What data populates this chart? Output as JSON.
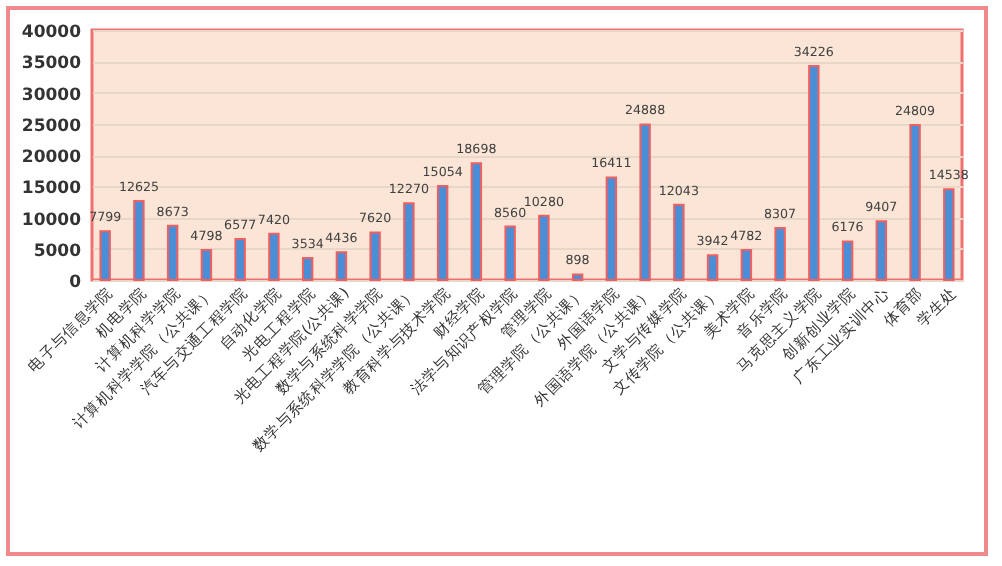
{
  "chart_data": {
    "type": "bar",
    "categories": [
      "电子与信息学院",
      "机电学院",
      "计算机科学学院",
      "计算机科学学院（公共课）",
      "汽车与交通工程学院",
      "自动化学院",
      "光电工程学院",
      "光电工程学院(公共课)",
      "数学与系统科学学院",
      "数学与系统科学学院（公共课）",
      "教育科学与技术学院",
      "财经学院",
      "法学与知识产权学院",
      "管理学院",
      "管理学院（公共课）",
      "外国语学院",
      "外国语学院（公共课）",
      "文学与传媒学院",
      "文传学院（公共课）",
      "美术学院",
      "音乐学院",
      "马克思主义学院",
      "创新创业学院",
      "广东工业实训中心",
      "体育部",
      "学生处"
    ],
    "values": [
      7799,
      12625,
      8673,
      4798,
      6577,
      7420,
      3534,
      4436,
      7620,
      12270,
      15054,
      18698,
      8560,
      10280,
      898,
      16411,
      24888,
      12043,
      3942,
      4782,
      8307,
      34226,
      6176,
      9407,
      24809,
      14538
    ],
    "color": "#4a8ed8",
    "ylim": [
      0,
      40000
    ],
    "yticks": [
      0,
      5000,
      10000,
      15000,
      20000,
      25000,
      30000,
      35000,
      40000
    ],
    "grid": "y",
    "data_labels": true
  }
}
